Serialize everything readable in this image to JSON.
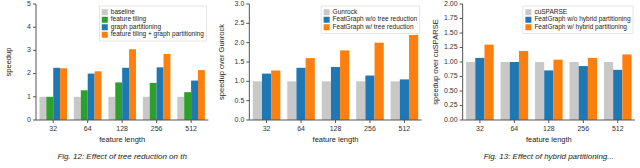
{
  "chart_data": [
    {
      "type": "bar",
      "xlabel": "feature length",
      "ylabel": "speedup",
      "categories": [
        "32",
        "64",
        "128",
        "256",
        "512"
      ],
      "series": [
        {
          "name": "baseline",
          "color": "#c8c8c8",
          "values": [
            1.0,
            1.0,
            1.0,
            1.0,
            1.0
          ]
        },
        {
          "name": "feature tiling",
          "color": "#2ca02c",
          "values": [
            1.0,
            1.28,
            1.62,
            1.6,
            1.2
          ]
        },
        {
          "name": "graph partitioning",
          "color": "#1f77b4",
          "values": [
            2.25,
            2.0,
            2.25,
            2.27,
            1.7
          ]
        },
        {
          "name": "feature tiling + graph partitioning",
          "color": "#ff7f0e",
          "values": [
            2.23,
            2.1,
            3.05,
            2.85,
            2.15
          ]
        }
      ],
      "ylim": [
        0,
        5
      ],
      "yticks": [
        0,
        1,
        2,
        3,
        4,
        5
      ],
      "grid": false,
      "legend": "upper right",
      "annotations": [
        "Fig. 12: Effect of tree reduction on th"
      ]
    },
    {
      "type": "bar",
      "xlabel": "feature length",
      "ylabel": "speedup over Gunrock",
      "categories": [
        "32",
        "64",
        "128",
        "256",
        "512"
      ],
      "series": [
        {
          "name": "Gunrock",
          "color": "#c8c8c8",
          "values": [
            1.0,
            1.0,
            1.0,
            1.0,
            1.0
          ]
        },
        {
          "name": "FeatGraph w/o tree reduction",
          "color": "#1f77b4",
          "values": [
            1.2,
            1.35,
            1.37,
            1.15,
            1.05
          ]
        },
        {
          "name": "FeatGraph w/ tree reduction",
          "color": "#ff7f0e",
          "values": [
            1.28,
            1.6,
            1.8,
            2.0,
            2.2
          ]
        }
      ],
      "ylim": [
        0,
        3
      ],
      "yticks": [
        {
          "value": 0,
          "label": "0.0"
        },
        0.5,
        {
          "value": 1,
          "label": "1.0"
        },
        1.5,
        {
          "value": 2,
          "label": "2.0"
        },
        2.5,
        {
          "value": 3,
          "label": "3.0"
        }
      ],
      "grid": false,
      "legend": "upper right"
    },
    {
      "type": "bar",
      "xlabel": "feature length",
      "ylabel": "speedup over cuSPARSE",
      "categories": [
        "32",
        "64",
        "128",
        "256",
        "512"
      ],
      "series": [
        {
          "name": "cuSPARSE",
          "color": "#c8c8c8",
          "values": [
            1.0,
            1.0,
            1.0,
            1.0,
            1.0
          ]
        },
        {
          "name": "FeatGraph w/o hybrid partitioning",
          "color": "#1f77b4",
          "values": [
            1.07,
            1.0,
            0.855,
            0.93,
            0.865
          ]
        },
        {
          "name": "FeatGraph w/ hybrid partitioning",
          "color": "#ff7f0e",
          "values": [
            1.3,
            1.19,
            1.04,
            1.07,
            1.13
          ]
        }
      ],
      "ylim": [
        0,
        2
      ],
      "yticks": [
        {
          "value": 0,
          "label": "0.00"
        },
        0.25,
        {
          "value": 0.5,
          "label": "0.50"
        },
        0.75,
        {
          "value": 1,
          "label": "1.00"
        },
        1.25,
        {
          "value": 1.5,
          "label": "1.50"
        },
        1.75,
        {
          "value": 2,
          "label": "2.00"
        }
      ],
      "grid": false,
      "legend": "upper right",
      "annotations": [
        "Fig. 13: Effect of hybrid partitioning..."
      ]
    }
  ]
}
